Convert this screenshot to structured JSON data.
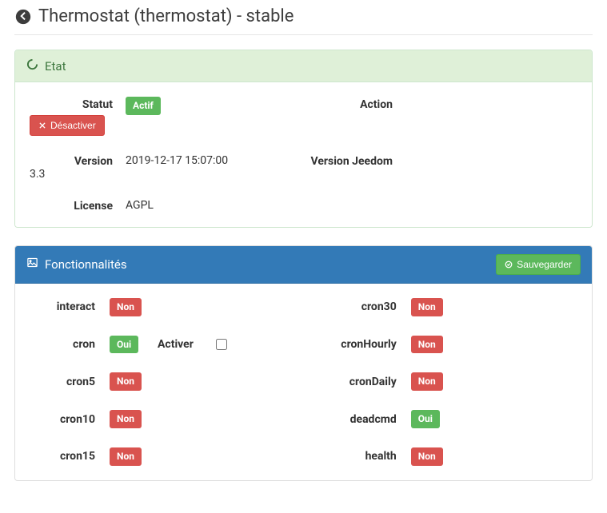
{
  "header": {
    "title": "Thermostat (thermostat) - stable"
  },
  "etat": {
    "heading": "Etat",
    "rows": [
      {
        "label": "Statut",
        "value": "Actif",
        "badge": true,
        "badgeColor": "#5cb85c",
        "label2": "Action",
        "action": {
          "label": "Désactiver"
        }
      },
      {
        "label": "Version",
        "value": "2019-12-17 15:07:00",
        "label2": "Version Jeedom",
        "value2": "3.3"
      },
      {
        "label": "License",
        "value": "AGPL"
      }
    ]
  },
  "fct": {
    "heading": "Fonctionnalités",
    "saveLabel": "Sauvegarder",
    "activerLabel": "Activer",
    "left": [
      {
        "name": "interact",
        "status": "Non",
        "color": "#d9534f"
      },
      {
        "name": "cron",
        "status": "Oui",
        "color": "#5cb85c",
        "hasCheckbox": true
      },
      {
        "name": "cron5",
        "status": "Non",
        "color": "#d9534f"
      },
      {
        "name": "cron10",
        "status": "Non",
        "color": "#d9534f"
      },
      {
        "name": "cron15",
        "status": "Non",
        "color": "#d9534f"
      }
    ],
    "right": [
      {
        "name": "cron30",
        "status": "Non",
        "color": "#d9534f"
      },
      {
        "name": "cronHourly",
        "status": "Non",
        "color": "#d9534f"
      },
      {
        "name": "cronDaily",
        "status": "Non",
        "color": "#d9534f"
      },
      {
        "name": "deadcmd",
        "status": "Oui",
        "color": "#5cb85c"
      },
      {
        "name": "health",
        "status": "Non",
        "color": "#d9534f"
      }
    ]
  },
  "colors": {
    "green": "#5cb85c",
    "red": "#d9534f",
    "blue": "#337ab7",
    "panelGreen": "#dff0d8"
  }
}
